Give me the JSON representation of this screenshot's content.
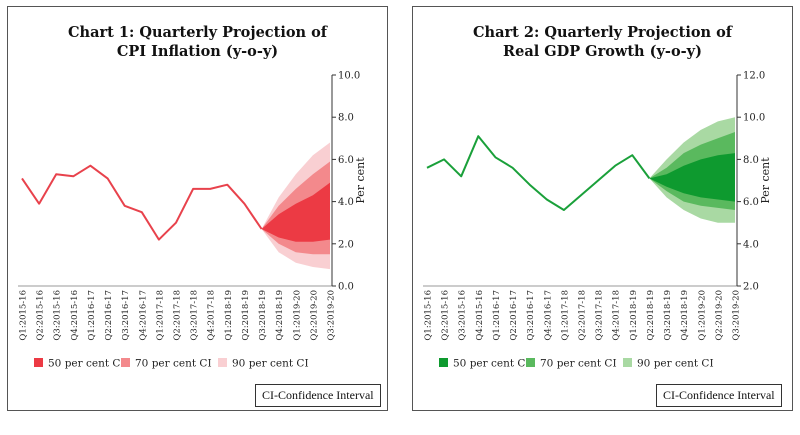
{
  "chart_data": [
    {
      "type": "area",
      "title": "Chart 1: Quarterly Projection of",
      "subtitle": "CPI Inflation (y-o-y)",
      "ylabel": "Per cent",
      "ylim": [
        0,
        10
      ],
      "yticks": [
        "0.0",
        "2.0",
        "4.0",
        "6.0",
        "8.0",
        "10.0"
      ],
      "categories": [
        "Q1:2015-16",
        "Q2:2015-16",
        "Q3:2015-16",
        "Q4:2015-16",
        "Q1:2016-17",
        "Q2:2016-17",
        "Q3:2016-17",
        "Q4:2016-17",
        "Q1:2017-18",
        "Q2:2017-18",
        "Q3:2017-18",
        "Q4:2017-18",
        "Q1:2018-19",
        "Q2:2018-19",
        "Q3:2018-19",
        "Q4:2018-19",
        "Q1:2019-20",
        "Q2:2019-20",
        "Q3:2019-20"
      ],
      "series": [
        {
          "values": [
            5.1,
            3.9,
            5.3,
            5.2,
            5.7,
            5.1,
            3.8,
            3.5,
            2.2,
            3.0,
            4.6,
            4.6,
            4.8,
            3.9,
            2.7,
            null,
            null,
            null,
            null
          ]
        }
      ],
      "fan": {
        "start_index": 14,
        "start_value": 2.7,
        "bands": [
          {
            "name": "90 per cent CI",
            "lower": [
              1.6,
              1.1,
              0.9,
              0.8
            ],
            "upper": [
              4.2,
              5.3,
              6.2,
              6.8
            ]
          },
          {
            "name": "70 per cent CI",
            "lower": [
              2.0,
              1.6,
              1.5,
              1.5
            ],
            "upper": [
              3.8,
              4.6,
              5.3,
              5.9
            ]
          },
          {
            "name": "50 per cent CI",
            "lower": [
              2.3,
              2.1,
              2.1,
              2.2
            ],
            "upper": [
              3.4,
              3.9,
              4.3,
              4.9
            ]
          }
        ]
      },
      "colors": {
        "line": "#e8424c",
        "ci50": "#ec3a44",
        "ci70": "#f3898c",
        "ci90": "#f9cfd2"
      },
      "legend": [
        "50 per cent CI",
        "70 per cent CI",
        "90 per cent CI"
      ],
      "legend_position": "bottom",
      "note": "CI-Confidence Interval"
    },
    {
      "type": "area",
      "title": "Chart 2: Quarterly Projection of",
      "subtitle": "Real GDP Growth (y-o-y)",
      "ylabel": "Per cent",
      "ylim": [
        2,
        12
      ],
      "yticks": [
        "2.0",
        "4.0",
        "6.0",
        "8.0",
        "10.0",
        "12.0"
      ],
      "categories": [
        "Q1:2015-16",
        "Q2:2015-16",
        "Q3:2015-16",
        "Q4:2015-16",
        "Q1:2016-17",
        "Q2:2016-17",
        "Q3:2016-17",
        "Q4:2016-17",
        "Q1:2017-18",
        "Q2:2017-18",
        "Q3:2017-18",
        "Q4:2017-18",
        "Q1:2018-19",
        "Q2:2018-19",
        "Q3:2018-19",
        "Q4:2018-19",
        "Q1:2019-20",
        "Q2:2019-20",
        "Q3:2019-20"
      ],
      "series": [
        {
          "values": [
            7.6,
            8.0,
            7.2,
            9.1,
            8.1,
            7.6,
            6.8,
            6.1,
            5.6,
            6.3,
            7.0,
            7.7,
            8.2,
            7.1,
            null,
            null,
            null,
            null,
            null
          ]
        }
      ],
      "fan": {
        "start_index": 13,
        "start_value": 7.1,
        "bands": [
          {
            "name": "90 per cent CI",
            "lower": [
              6.2,
              5.6,
              5.2,
              5.0,
              5.0
            ],
            "upper": [
              8.0,
              8.8,
              9.4,
              9.8,
              10.0
            ]
          },
          {
            "name": "70 per cent CI",
            "lower": [
              6.5,
              6.0,
              5.8,
              5.7,
              5.6
            ],
            "upper": [
              7.6,
              8.3,
              8.7,
              9.0,
              9.3
            ]
          },
          {
            "name": "50 per cent CI",
            "lower": [
              6.7,
              6.4,
              6.2,
              6.1,
              6.0
            ],
            "upper": [
              7.3,
              7.7,
              8.0,
              8.2,
              8.3
            ]
          }
        ]
      },
      "colors": {
        "line": "#1aa03a",
        "ci50": "#0e9a2f",
        "ci70": "#5ab95e",
        "ci90": "#a9d9a3"
      },
      "legend": [
        "50 per cent CI",
        "70 per cent CI",
        "90 per cent CI"
      ],
      "legend_position": "bottom",
      "note": "CI-Confidence Interval"
    }
  ]
}
